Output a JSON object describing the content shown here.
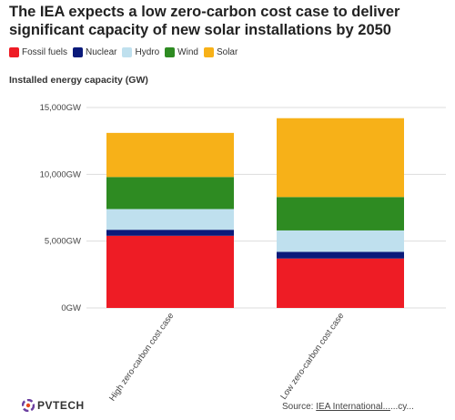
{
  "title": "The IEA expects a low zero-carbon cost case to deliver significant capacity of new solar installations by 2050",
  "legend": [
    {
      "label": "Fossil fuels",
      "color": "#ee1c25"
    },
    {
      "label": "Nuclear",
      "color": "#0a1a7a"
    },
    {
      "label": "Hydro",
      "color": "#bfe0ee"
    },
    {
      "label": "Wind",
      "color": "#2e8b22"
    },
    {
      "label": "Solar",
      "color": "#f7b118"
    }
  ],
  "subtitle": "Installed energy capacity (GW)",
  "footer": {
    "logo_text": "PVTECH",
    "source_label": "Source: ",
    "source_link": "IEA International...",
    "source_tail": "...cy..."
  },
  "chart_data": {
    "type": "bar",
    "stacked": true,
    "categories": [
      "High zero-carbon cost case",
      "Low zero-carbon cost case"
    ],
    "series": [
      {
        "name": "Fossil fuels",
        "color": "#ee1c25",
        "values": [
          5400,
          3700
        ]
      },
      {
        "name": "Nuclear",
        "color": "#0a1a7a",
        "values": [
          450,
          500
        ]
      },
      {
        "name": "Hydro",
        "color": "#bfe0ee",
        "values": [
          1550,
          1600
        ]
      },
      {
        "name": "Wind",
        "color": "#2e8b22",
        "values": [
          2400,
          2500
        ]
      },
      {
        "name": "Solar",
        "color": "#f7b118",
        "values": [
          3300,
          5900
        ]
      }
    ],
    "ylim": [
      0,
      15000
    ],
    "yticks": [
      0,
      5000,
      10000,
      15000
    ],
    "ytick_labels": [
      "0GW",
      "5,000GW",
      "10,000GW",
      "15,000GW"
    ],
    "ylabel": "Installed energy capacity (GW)",
    "grid": true,
    "legend_position": "top-left"
  }
}
